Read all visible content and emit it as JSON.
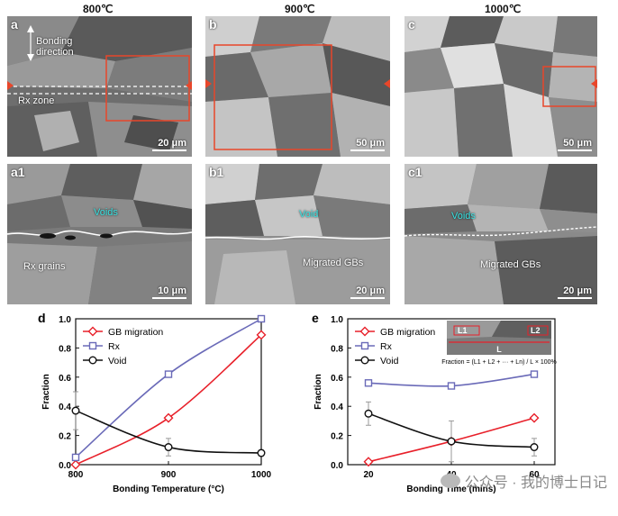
{
  "figure": {
    "columns": [
      "800℃",
      "900℃",
      "1000℃"
    ],
    "panels": [
      {
        "id": "a",
        "scale": "20 μm"
      },
      {
        "id": "b",
        "scale": "50 μm"
      },
      {
        "id": "c",
        "scale": "50 μm"
      },
      {
        "id": "a1",
        "scale": "10 μm"
      },
      {
        "id": "b1",
        "scale": "20 μm"
      },
      {
        "id": "c1",
        "scale": "20 μm"
      }
    ],
    "annotations": {
      "bonding_direction": "Bonding direction",
      "rx_zone": "Rx zone",
      "voids": "Voids",
      "void": "Void",
      "rx_grains": "Rx grains",
      "migrated_gbs": "Migrated GBs"
    },
    "watermark": "公众号 · 我的博士日记"
  },
  "colors": {
    "gb": "#e8202a",
    "rx": "#6a6ab8",
    "void": "#111111",
    "accent": "#e8462a",
    "cyan": "#37e3e3"
  },
  "chart_data": [
    {
      "panel": "d",
      "type": "line",
      "xlabel": "Bonding Temperature (°C)",
      "ylabel": "Fraction",
      "x": [
        800,
        900,
        1000
      ],
      "xlim": [
        800,
        1000
      ],
      "ylim": [
        0,
        1.0
      ],
      "xticks": [
        "800",
        "900",
        "1000"
      ],
      "yticks": [
        "0.0",
        "0.2",
        "0.4",
        "0.6",
        "0.8",
        "1.0"
      ],
      "legend": "top-left",
      "series": [
        {
          "name": "GB migration",
          "values": [
            0.0,
            0.32,
            0.89
          ],
          "marker": "diamond",
          "color": "#e8202a"
        },
        {
          "name": "Rx",
          "values": [
            0.05,
            0.62,
            1.0
          ],
          "marker": "square",
          "color": "#6a6ab8"
        },
        {
          "name": "Void",
          "values": [
            0.37,
            0.12,
            0.08
          ],
          "marker": "circle",
          "color": "#111111",
          "errors": [
            0.13,
            0.06,
            0.02
          ]
        }
      ]
    },
    {
      "panel": "e",
      "type": "line",
      "xlabel": "Bonding Time (mins)",
      "ylabel": "Fraction",
      "x": [
        20,
        40,
        60
      ],
      "xlim": [
        15,
        65
      ],
      "ylim": [
        0,
        1.0
      ],
      "xticks": [
        "20",
        "40",
        "60"
      ],
      "yticks": [
        "0.0",
        "0.2",
        "0.4",
        "0.6",
        "0.8",
        "1.0"
      ],
      "legend": "top-left",
      "inset": {
        "labels": [
          "L1",
          "L2",
          "L"
        ],
        "formula": "Fraction = (L1 + L2 + ··· + Ln) / L × 100%"
      },
      "series": [
        {
          "name": "GB migration",
          "values": [
            0.02,
            0.16,
            0.32
          ],
          "marker": "diamond",
          "color": "#e8202a"
        },
        {
          "name": "Rx",
          "values": [
            0.56,
            0.54,
            0.62
          ],
          "marker": "square",
          "color": "#6a6ab8"
        },
        {
          "name": "Void",
          "values": [
            0.35,
            0.16,
            0.12
          ],
          "marker": "circle",
          "color": "#111111",
          "errors": [
            0.08,
            0.14,
            0.06
          ]
        }
      ]
    }
  ]
}
